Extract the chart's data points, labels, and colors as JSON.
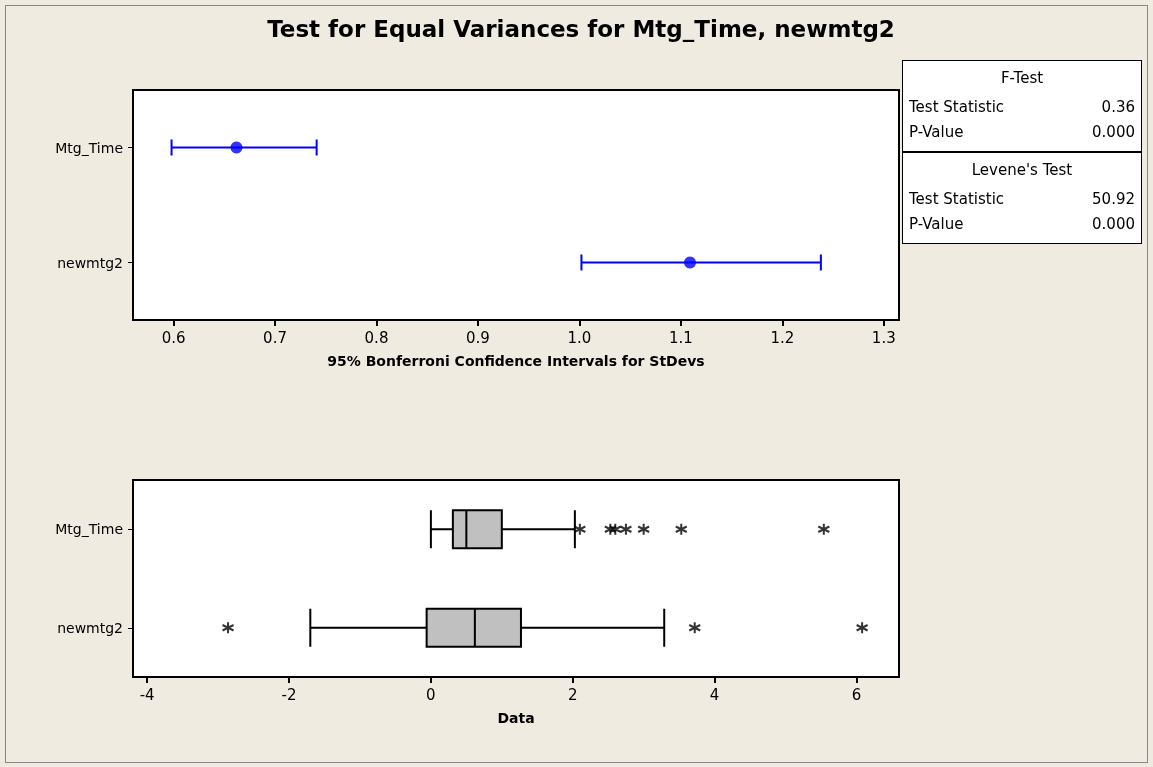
{
  "chart_data": [
    {
      "type": "scatter",
      "title": "Test for Equal Variances for Mtg_Time, newmtg2",
      "orientation": "horizontal",
      "categories": [
        "Mtg_Time",
        "newmtg2"
      ],
      "values": [
        0.662,
        1.109
      ],
      "errors": [
        [
          0.598,
          0.741
        ],
        [
          1.002,
          1.238
        ]
      ],
      "color": "#0000ff",
      "marker": "circle",
      "xlim": [
        0.56,
        1.315
      ],
      "xticks": [
        0.6,
        0.7,
        0.8,
        0.9,
        {
          "value": 1,
          "label": "1.0"
        },
        1.1,
        1.2,
        1.3
      ],
      "xlabel": "95% Bonferroni Confidence Intervals for StDevs"
    },
    {
      "type": "box",
      "orientation": "horizontal",
      "categories": [
        "Mtg_Time",
        "newmtg2"
      ],
      "color": "#c0c0c0",
      "marker": "star",
      "xlim": [
        -4.2,
        6.6
      ],
      "xticks": [
        -4,
        -2,
        0,
        2,
        4,
        6
      ],
      "xlabel": "Data",
      "boxes": [
        {
          "low": 0.0,
          "q1": 0.31,
          "median": 0.5,
          "q3": 1.0,
          "high": 2.03,
          "outliers": [
            2.1,
            2.53,
            2.6,
            2.75,
            3.0,
            3.53,
            5.54
          ]
        },
        {
          "low": -1.7,
          "q1": -0.06,
          "median": 0.62,
          "q3": 1.27,
          "high": 3.29,
          "outliers": [
            -2.86,
            3.72,
            6.08
          ]
        }
      ]
    },
    {
      "type": "other",
      "annotations": [
        "F-Test",
        "Test Statistic",
        "0.36",
        "P-Value",
        "0.000",
        "Levene's Test",
        "Test Statistic",
        "50.92",
        "P-Value",
        "0.000"
      ]
    }
  ]
}
